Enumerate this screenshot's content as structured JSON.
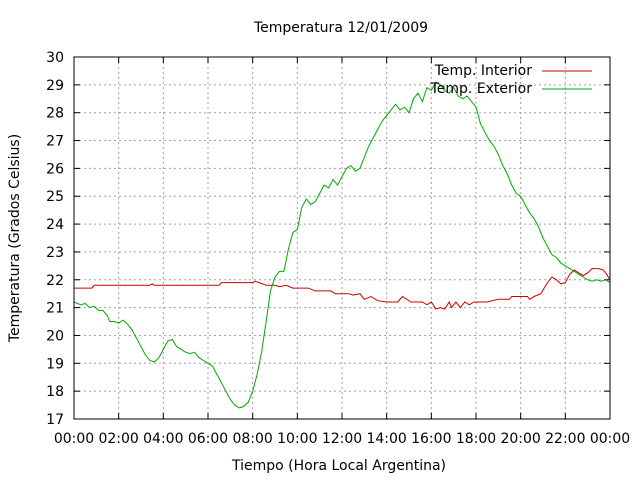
{
  "chart_data": {
    "type": "line",
    "title": "Temperatura 12/01/2009",
    "xlabel": "Tiempo (Hora Local Argentina)",
    "ylabel": "Temperatura (Grados Celsius)",
    "xlim": [
      0,
      24
    ],
    "ylim": [
      17,
      30
    ],
    "x_tick_values": [
      0,
      2,
      4,
      6,
      8,
      10,
      12,
      14,
      16,
      18,
      20,
      22,
      24
    ],
    "x_tick_labels": [
      "00:00",
      "02:00",
      "04:00",
      "06:00",
      "08:00",
      "10:00",
      "12:00",
      "14:00",
      "16:00",
      "18:00",
      "20:00",
      "22:00",
      "00:00"
    ],
    "y_ticks": [
      17,
      18,
      19,
      20,
      21,
      22,
      23,
      24,
      25,
      26,
      27,
      28,
      29,
      30
    ],
    "grid": true,
    "legend_position": "top-right",
    "series": [
      {
        "name": "Temp. Interior",
        "color": "#cc0000",
        "points": [
          [
            0,
            21.7
          ],
          [
            0.8,
            21.7
          ],
          [
            0.9,
            21.8
          ],
          [
            3.4,
            21.8
          ],
          [
            3.5,
            21.85
          ],
          [
            3.6,
            21.8
          ],
          [
            6.5,
            21.8
          ],
          [
            6.6,
            21.9
          ],
          [
            8.0,
            21.9
          ],
          [
            8.1,
            21.95
          ],
          [
            8.3,
            21.9
          ],
          [
            8.6,
            21.8
          ],
          [
            9.0,
            21.8
          ],
          [
            9.2,
            21.75
          ],
          [
            9.5,
            21.8
          ],
          [
            9.8,
            21.7
          ],
          [
            10.5,
            21.7
          ],
          [
            10.8,
            21.6
          ],
          [
            11.5,
            21.6
          ],
          [
            11.7,
            21.5
          ],
          [
            12.3,
            21.5
          ],
          [
            12.5,
            21.45
          ],
          [
            12.8,
            21.5
          ],
          [
            13.0,
            21.3
          ],
          [
            13.3,
            21.4
          ],
          [
            13.6,
            21.25
          ],
          [
            14.0,
            21.2
          ],
          [
            14.5,
            21.2
          ],
          [
            14.7,
            21.4
          ],
          [
            14.9,
            21.3
          ],
          [
            15.1,
            21.2
          ],
          [
            15.6,
            21.2
          ],
          [
            15.8,
            21.1
          ],
          [
            16.0,
            21.2
          ],
          [
            16.2,
            20.95
          ],
          [
            16.4,
            21.0
          ],
          [
            16.6,
            20.95
          ],
          [
            16.8,
            21.2
          ],
          [
            16.9,
            21.0
          ],
          [
            17.1,
            21.2
          ],
          [
            17.3,
            21.0
          ],
          [
            17.5,
            21.2
          ],
          [
            17.7,
            21.1
          ],
          [
            17.9,
            21.2
          ],
          [
            18.5,
            21.2
          ],
          [
            19.0,
            21.3
          ],
          [
            19.5,
            21.3
          ],
          [
            19.6,
            21.4
          ],
          [
            20.3,
            21.4
          ],
          [
            20.4,
            21.3
          ],
          [
            20.6,
            21.4
          ],
          [
            20.9,
            21.5
          ],
          [
            21.2,
            21.9
          ],
          [
            21.4,
            22.1
          ],
          [
            21.6,
            22.0
          ],
          [
            21.8,
            21.85
          ],
          [
            22.0,
            21.9
          ],
          [
            22.2,
            22.2
          ],
          [
            22.4,
            22.35
          ],
          [
            22.6,
            22.25
          ],
          [
            22.8,
            22.15
          ],
          [
            23.0,
            22.25
          ],
          [
            23.2,
            22.4
          ],
          [
            23.5,
            22.4
          ],
          [
            23.7,
            22.35
          ],
          [
            23.85,
            22.2
          ],
          [
            24.0,
            22.0
          ]
        ]
      },
      {
        "name": "Temp. Exterior",
        "color": "#00aa00",
        "points": [
          [
            0,
            21.2
          ],
          [
            0.3,
            21.1
          ],
          [
            0.5,
            21.15
          ],
          [
            0.7,
            21.0
          ],
          [
            0.9,
            21.05
          ],
          [
            1.1,
            20.9
          ],
          [
            1.3,
            20.9
          ],
          [
            1.5,
            20.7
          ],
          [
            1.6,
            20.5
          ],
          [
            1.8,
            20.5
          ],
          [
            2.0,
            20.45
          ],
          [
            2.2,
            20.55
          ],
          [
            2.4,
            20.4
          ],
          [
            2.6,
            20.2
          ],
          [
            2.8,
            19.9
          ],
          [
            3.0,
            19.6
          ],
          [
            3.2,
            19.3
          ],
          [
            3.4,
            19.1
          ],
          [
            3.6,
            19.05
          ],
          [
            3.8,
            19.2
          ],
          [
            4.0,
            19.5
          ],
          [
            4.2,
            19.8
          ],
          [
            4.4,
            19.85
          ],
          [
            4.6,
            19.6
          ],
          [
            4.8,
            19.5
          ],
          [
            5.0,
            19.4
          ],
          [
            5.2,
            19.35
          ],
          [
            5.4,
            19.4
          ],
          [
            5.6,
            19.2
          ],
          [
            5.8,
            19.1
          ],
          [
            6.0,
            19.0
          ],
          [
            6.2,
            18.9
          ],
          [
            6.4,
            18.6
          ],
          [
            6.6,
            18.3
          ],
          [
            6.8,
            18.0
          ],
          [
            7.0,
            17.7
          ],
          [
            7.2,
            17.5
          ],
          [
            7.4,
            17.4
          ],
          [
            7.6,
            17.45
          ],
          [
            7.8,
            17.6
          ],
          [
            8.0,
            18.0
          ],
          [
            8.2,
            18.6
          ],
          [
            8.4,
            19.4
          ],
          [
            8.6,
            20.5
          ],
          [
            8.8,
            21.6
          ],
          [
            9.0,
            22.1
          ],
          [
            9.2,
            22.3
          ],
          [
            9.4,
            22.3
          ],
          [
            9.6,
            23.1
          ],
          [
            9.8,
            23.7
          ],
          [
            10.0,
            23.8
          ],
          [
            10.2,
            24.6
          ],
          [
            10.4,
            24.9
          ],
          [
            10.6,
            24.7
          ],
          [
            10.8,
            24.8
          ],
          [
            11.0,
            25.1
          ],
          [
            11.2,
            25.4
          ],
          [
            11.4,
            25.3
          ],
          [
            11.6,
            25.6
          ],
          [
            11.8,
            25.4
          ],
          [
            12.0,
            25.7
          ],
          [
            12.2,
            26.0
          ],
          [
            12.4,
            26.1
          ],
          [
            12.6,
            25.9
          ],
          [
            12.8,
            26.0
          ],
          [
            13.0,
            26.4
          ],
          [
            13.2,
            26.8
          ],
          [
            13.4,
            27.1
          ],
          [
            13.6,
            27.4
          ],
          [
            13.8,
            27.7
          ],
          [
            14.0,
            27.9
          ],
          [
            14.2,
            28.1
          ],
          [
            14.4,
            28.3
          ],
          [
            14.6,
            28.1
          ],
          [
            14.8,
            28.2
          ],
          [
            15.0,
            28.0
          ],
          [
            15.2,
            28.5
          ],
          [
            15.4,
            28.7
          ],
          [
            15.6,
            28.4
          ],
          [
            15.8,
            28.9
          ],
          [
            16.0,
            28.8
          ],
          [
            16.2,
            29.1
          ],
          [
            16.4,
            29.0
          ],
          [
            16.6,
            28.8
          ],
          [
            16.8,
            28.7
          ],
          [
            17.0,
            28.9
          ],
          [
            17.2,
            28.6
          ],
          [
            17.4,
            28.5
          ],
          [
            17.6,
            28.6
          ],
          [
            17.8,
            28.4
          ],
          [
            18.0,
            28.2
          ],
          [
            18.2,
            27.6
          ],
          [
            18.4,
            27.3
          ],
          [
            18.6,
            27.0
          ],
          [
            18.8,
            26.8
          ],
          [
            19.0,
            26.5
          ],
          [
            19.2,
            26.1
          ],
          [
            19.4,
            25.8
          ],
          [
            19.6,
            25.4
          ],
          [
            19.8,
            25.1
          ],
          [
            20.0,
            25.0
          ],
          [
            20.2,
            24.7
          ],
          [
            20.4,
            24.4
          ],
          [
            20.6,
            24.2
          ],
          [
            20.8,
            23.9
          ],
          [
            21.0,
            23.5
          ],
          [
            21.2,
            23.2
          ],
          [
            21.4,
            22.9
          ],
          [
            21.6,
            22.8
          ],
          [
            21.8,
            22.6
          ],
          [
            22.0,
            22.5
          ],
          [
            22.2,
            22.4
          ],
          [
            22.4,
            22.3
          ],
          [
            22.6,
            22.2
          ],
          [
            22.8,
            22.1
          ],
          [
            23.0,
            22.0
          ],
          [
            23.2,
            21.95
          ],
          [
            23.4,
            22.0
          ],
          [
            23.6,
            21.95
          ],
          [
            23.8,
            22.0
          ],
          [
            24.0,
            21.9
          ]
        ]
      }
    ]
  }
}
